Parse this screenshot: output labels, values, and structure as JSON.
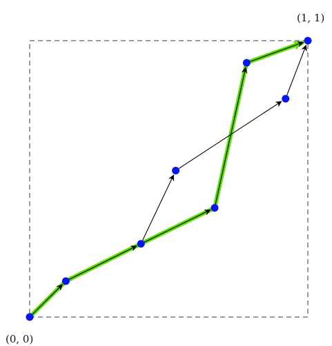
{
  "diagram": {
    "labels": {
      "origin": "(0, 0)",
      "end": "(1, 1)"
    },
    "colors": {
      "node": "#0a16f2",
      "highlight": "#59e000",
      "arrow": "#000000",
      "boundary": "#7a7a7a"
    },
    "points": [
      {
        "id": "p0",
        "x": 0.0,
        "y": 0.0
      },
      {
        "id": "p1",
        "x": 0.13,
        "y": 0.13
      },
      {
        "id": "p2",
        "x": 0.4,
        "y": 0.265
      },
      {
        "id": "p3",
        "x": 0.525,
        "y": 0.53
      },
      {
        "id": "p4",
        "x": 0.665,
        "y": 0.395
      },
      {
        "id": "p5",
        "x": 0.78,
        "y": 0.92
      },
      {
        "id": "p6",
        "x": 0.92,
        "y": 0.79
      },
      {
        "id": "p7",
        "x": 1.0,
        "y": 1.0
      }
    ],
    "arrows": [
      {
        "from": "p0",
        "to": "p1"
      },
      {
        "from": "p1",
        "to": "p2"
      },
      {
        "from": "p2",
        "to": "p3"
      },
      {
        "from": "p2",
        "to": "p4"
      },
      {
        "from": "p3",
        "to": "p6"
      },
      {
        "from": "p4",
        "to": "p5"
      },
      {
        "from": "p5",
        "to": "p7"
      },
      {
        "from": "p6",
        "to": "p7"
      }
    ],
    "highlighted_path": [
      "p0",
      "p1",
      "p2",
      "p4",
      "p5",
      "p7"
    ]
  }
}
